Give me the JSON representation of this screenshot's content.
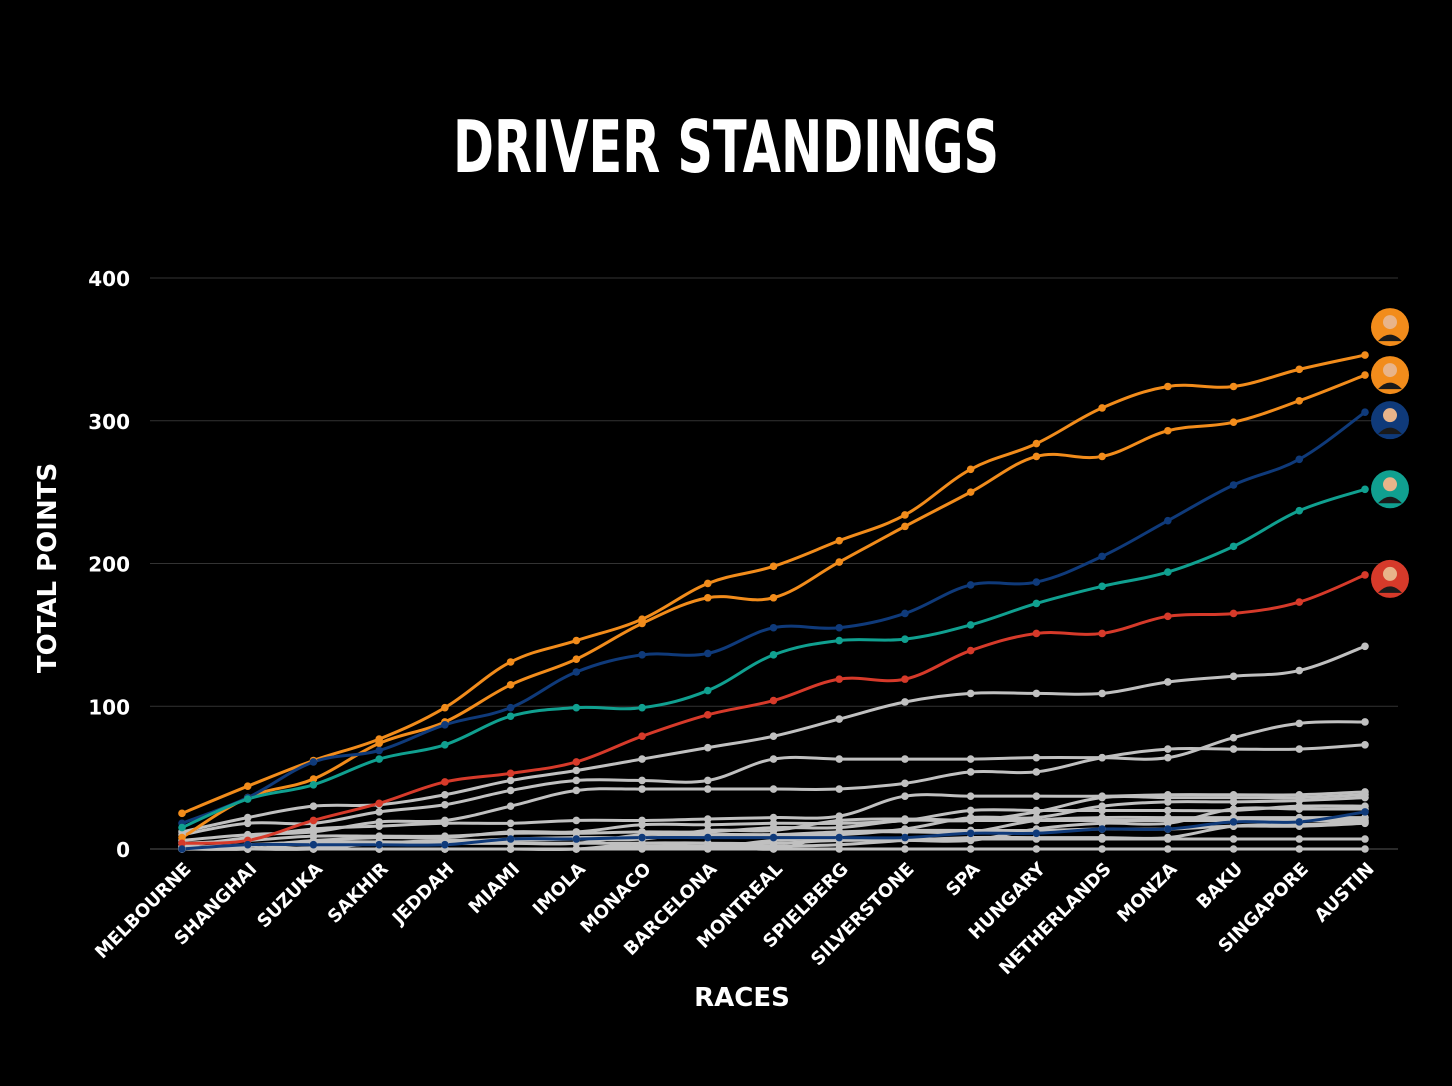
{
  "chart_data": {
    "type": "line",
    "title": "DRIVER STANDINGS",
    "xlabel": "RACES",
    "ylabel": "TOTAL POINTS",
    "ylim": [
      0,
      400
    ],
    "yticks": [
      0,
      100,
      200,
      300,
      400
    ],
    "grid": true,
    "categories": [
      "MELBOURNE",
      "SHANGHAI",
      "SUZUKA",
      "SAKHIR",
      "JEDDAH",
      "MIAMI",
      "IMOLA",
      "MONACO",
      "BARCELONA",
      "MONTREAL",
      "SPIELBERG",
      "SILVERSTONE",
      "SPA",
      "HUNGARY",
      "NETHERLANDS",
      "MONZA",
      "BAKU",
      "SINGAPORE",
      "AUSTIN"
    ],
    "series": [
      {
        "color": "#f28c1b",
        "avatar_icon": "driver-avatar-orange-1",
        "values": [
          25,
          44,
          62,
          77,
          99,
          131,
          146,
          161,
          186,
          198,
          216,
          234,
          266,
          284,
          309,
          324,
          324,
          336,
          346
        ]
      },
      {
        "color": "#f28c1b",
        "avatar_icon": "driver-avatar-orange-2",
        "values": [
          8,
          36,
          49,
          74,
          89,
          115,
          133,
          158,
          176,
          176,
          201,
          226,
          250,
          275,
          275,
          293,
          299,
          314,
          332
        ]
      },
      {
        "color": "#0f3a7a",
        "avatar_icon": "driver-avatar-blue",
        "values": [
          18,
          36,
          61,
          69,
          87,
          99,
          124,
          136,
          137,
          155,
          155,
          165,
          185,
          187,
          205,
          230,
          255,
          273,
          306
        ]
      },
      {
        "color": "#10a090",
        "avatar_icon": "driver-avatar-teal",
        "values": [
          15,
          35,
          45,
          63,
          73,
          93,
          99,
          99,
          111,
          136,
          146,
          147,
          157,
          172,
          184,
          194,
          212,
          237,
          252
        ]
      },
      {
        "color": "#d63a2a",
        "avatar_icon": "driver-avatar-red",
        "values": [
          4,
          6,
          20,
          32,
          47,
          53,
          61,
          79,
          94,
          104,
          119,
          119,
          139,
          151,
          151,
          163,
          165,
          173,
          192
        ]
      },
      {
        "color": "#c0c0c0",
        "values": [
          12,
          22,
          30,
          31,
          38,
          48,
          55,
          63,
          71,
          79,
          91,
          103,
          109,
          109,
          109,
          117,
          121,
          125,
          142
        ]
      },
      {
        "color": "#c0c0c0",
        "values": [
          10,
          18,
          18,
          26,
          31,
          41,
          48,
          48,
          48,
          63,
          63,
          63,
          63,
          64,
          64,
          64,
          78,
          88,
          89
        ]
      },
      {
        "color": "#c0c0c0",
        "values": [
          6,
          10,
          12,
          19,
          20,
          30,
          41,
          42,
          42,
          42,
          42,
          46,
          54,
          54,
          64,
          70,
          70,
          70,
          73
        ]
      },
      {
        "color": "#c0c0c0",
        "values": [
          2,
          8,
          14,
          16,
          18,
          18,
          20,
          20,
          21,
          22,
          23,
          37,
          37,
          37,
          37,
          38,
          38,
          38,
          40
        ]
      },
      {
        "color": "#c0c0c0",
        "values": [
          0,
          2,
          6,
          8,
          8,
          12,
          12,
          17,
          17,
          18,
          18,
          20,
          27,
          27,
          27,
          27,
          27,
          30,
          30
        ]
      },
      {
        "color": "#c0c0c0",
        "values": [
          1,
          3,
          5,
          5,
          5,
          7,
          8,
          8,
          10,
          10,
          10,
          14,
          22,
          22,
          30,
          33,
          33,
          34,
          36
        ]
      },
      {
        "color": "#c0c0c0",
        "values": [
          4,
          6,
          9,
          9,
          9,
          11,
          11,
          12,
          12,
          15,
          15,
          20,
          20,
          26,
          36,
          36,
          36,
          36,
          38
        ]
      },
      {
        "color": "#c0c0c0",
        "values": [
          0,
          0,
          1,
          4,
          6,
          6,
          7,
          7,
          13,
          13,
          20,
          21,
          20,
          20,
          20,
          20,
          20,
          20,
          20
        ]
      },
      {
        "color": "#c0c0c0",
        "values": [
          0,
          0,
          0,
          0,
          0,
          0,
          0,
          2,
          2,
          2,
          3,
          6,
          8,
          8,
          8,
          8,
          16,
          17,
          19
        ]
      },
      {
        "color": "#c0c0c0",
        "values": [
          0,
          0,
          0,
          0,
          0,
          0,
          0,
          1,
          1,
          6,
          7,
          7,
          7,
          7,
          7,
          7,
          7,
          7,
          7
        ]
      },
      {
        "color": "#c0c0c0",
        "values": [
          0,
          0,
          0,
          0,
          0,
          0,
          0,
          0,
          0,
          0,
          0,
          0,
          0,
          0,
          0,
          0,
          0,
          0,
          0
        ]
      },
      {
        "color": "#0f3a7a",
        "values": [
          0,
          3,
          3,
          3,
          3,
          7,
          7,
          8,
          8,
          8,
          8,
          8,
          11,
          11,
          14,
          14,
          19,
          19,
          26
        ]
      },
      {
        "color": "#c0c0c0",
        "values": [
          0,
          0,
          0,
          4,
          4,
          4,
          4,
          4,
          4,
          0,
          11,
          12,
          12,
          20,
          22,
          22,
          22,
          22,
          22
        ]
      },
      {
        "color": "#c0c0c0",
        "values": [
          0,
          0,
          4,
          4,
          4,
          4,
          4,
          10,
          10,
          10,
          12,
          13,
          13,
          13,
          14,
          14,
          16,
          16,
          18
        ]
      },
      {
        "color": "#c0c0c0",
        "values": [
          0,
          0,
          0,
          0,
          0,
          0,
          0,
          4,
          4,
          4,
          6,
          6,
          6,
          14,
          18,
          18,
          28,
          28,
          28
        ]
      }
    ]
  }
}
